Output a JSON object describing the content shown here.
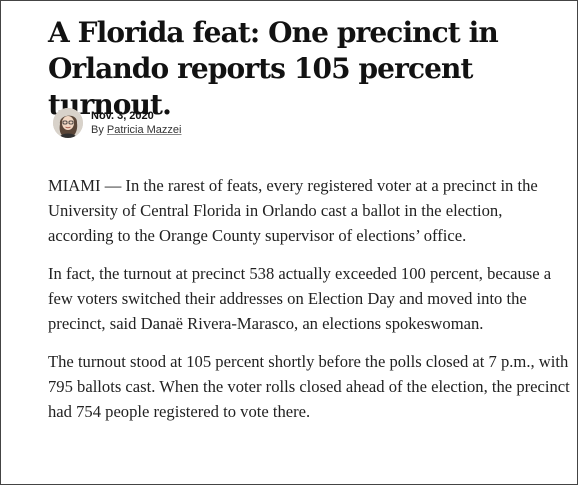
{
  "article": {
    "headline": "A Florida feat: One precinct in Orlando reports 105 percent turnout.",
    "date": "Nov. 3, 2020",
    "byline_prefix": "By",
    "author": "Patricia Mazzei",
    "author_avatar_icon": "author-photo",
    "paragraphs": [
      "MIAMI — In the rarest of feats, every registered voter at a precinct in the University of Central Florida in Orlando cast a ballot in the election, according to the Orange County supervisor of elections’ office.",
      "In fact, the turnout at precinct 538 actually exceeded 100 percent, because a few voters switched their addresses on Election Day and moved into the precinct, said Danaë Rivera-Marasco, an elections spokeswoman.",
      "The turnout stood at 105 percent shortly before the polls closed at 7 p.m., with 795 ballots cast. When the voter rolls closed ahead of the election, the precinct had 754 people registered to vote there."
    ]
  }
}
